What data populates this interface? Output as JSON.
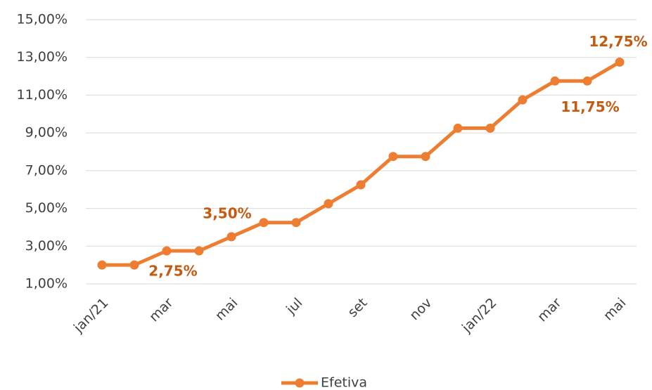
{
  "chart_data": {
    "type": "line",
    "categories": [
      "jan/21",
      null,
      "mar",
      null,
      "mai",
      null,
      "jul",
      null,
      "set",
      null,
      "nov",
      null,
      "jan/22",
      null,
      "mar",
      null,
      "mai"
    ],
    "series": [
      {
        "name": "Efetiva",
        "color": "#ed7d31",
        "values": [
          2.0,
          2.0,
          2.75,
          2.75,
          3.5,
          4.25,
          4.25,
          5.25,
          6.25,
          7.75,
          7.75,
          9.25,
          9.25,
          10.75,
          11.75,
          11.75,
          12.75
        ],
        "value_labels": [
          null,
          null,
          null,
          "2,75%",
          "3,50%",
          null,
          null,
          null,
          null,
          null,
          null,
          null,
          null,
          null,
          null,
          "11,75%",
          "12,75%"
        ]
      }
    ],
    "ylim": [
      1,
      15
    ],
    "yticks": [
      {
        "value": 1,
        "label": "1,00%"
      },
      {
        "value": 3,
        "label": "3,00%"
      },
      {
        "value": 5,
        "label": "5,00%"
      },
      {
        "value": 7,
        "label": "7,00%"
      },
      {
        "value": 9,
        "label": "9,00%"
      },
      {
        "value": 11,
        "label": "11,00%"
      },
      {
        "value": 13,
        "label": "13,00%"
      },
      {
        "value": 15,
        "label": "15,00%"
      }
    ],
    "grid": true,
    "legend": "bottom"
  }
}
